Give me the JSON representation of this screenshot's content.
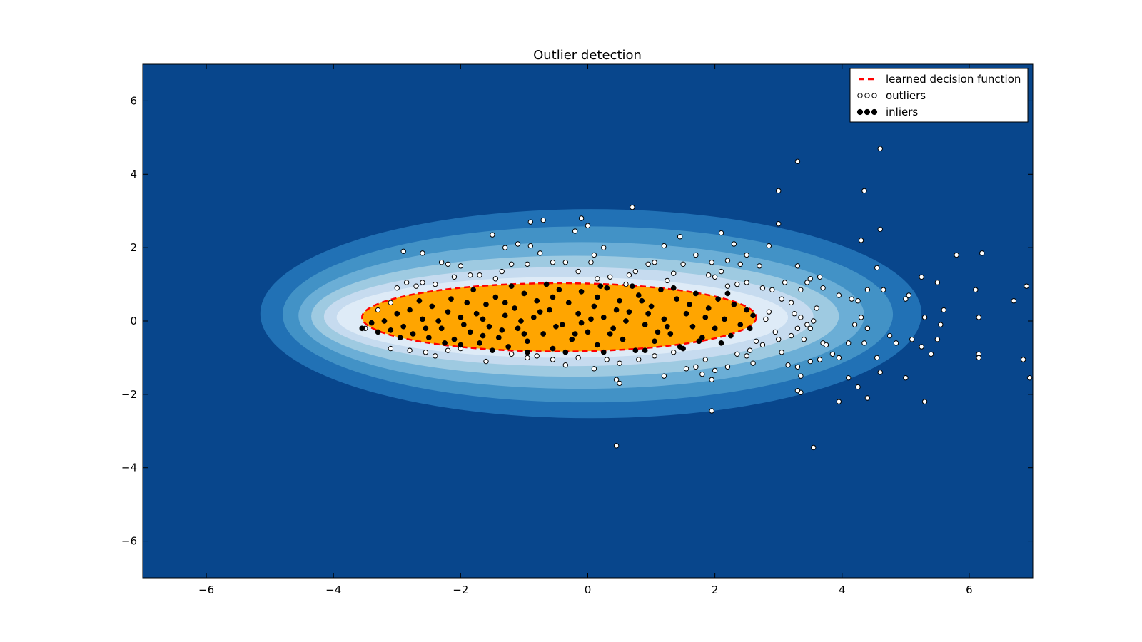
{
  "chart_data": {
    "type": "scatter",
    "title": "Outlier detection",
    "xlabel": "",
    "ylabel": "",
    "xlim": [
      -7,
      7
    ],
    "ylim": [
      -7,
      7
    ],
    "xticks": [
      -6,
      -4,
      -2,
      0,
      2,
      4,
      6
    ],
    "yticks": [
      -6,
      -4,
      -2,
      0,
      2,
      4,
      6
    ],
    "legend_position": "top-right",
    "colors": {
      "background": "#08468c",
      "levels": [
        "#2171b5",
        "#4292c6",
        "#6baed6",
        "#9ecae1",
        "#c6dbef",
        "#deebf7",
        "#eef4fb"
      ],
      "inlier_region": "#ffa500",
      "decision_line": "#ff0000",
      "inlier_marker": "#000000",
      "outlier_marker": "#ffffff"
    },
    "decision_region": {
      "center": [
        -0.45,
        0.1
      ],
      "semi_axes": [
        3.1,
        0.93
      ]
    },
    "contour_levels": [
      {
        "center": [
          0.05,
          0.2
        ],
        "semi_axes": [
          5.2,
          2.85
        ]
      },
      {
        "center": [
          0.0,
          0.18
        ],
        "semi_axes": [
          4.8,
          2.4
        ]
      },
      {
        "center": [
          -0.1,
          0.15
        ],
        "semi_axes": [
          4.45,
          2.0
        ]
      },
      {
        "center": [
          -0.2,
          0.13
        ],
        "semi_axes": [
          4.15,
          1.65
        ]
      },
      {
        "center": [
          -0.3,
          0.12
        ],
        "semi_axes": [
          3.85,
          1.35
        ]
      },
      {
        "center": [
          -0.4,
          0.1
        ],
        "semi_axes": [
          3.55,
          1.1
        ]
      }
    ],
    "outliers": [
      [
        -2.9,
        1.9
      ],
      [
        -2.6,
        1.85
      ],
      [
        -2.3,
        1.6
      ],
      [
        -2.2,
        1.55
      ],
      [
        -2.0,
        1.5
      ],
      [
        -1.5,
        2.35
      ],
      [
        -1.3,
        2.0
      ],
      [
        -1.1,
        2.1
      ],
      [
        -0.9,
        2.05
      ],
      [
        -0.9,
        2.7
      ],
      [
        -0.7,
        2.75
      ],
      [
        -0.1,
        2.8
      ],
      [
        0.0,
        2.6
      ],
      [
        -0.2,
        2.45
      ],
      [
        0.7,
        3.1
      ],
      [
        1.45,
        2.3
      ],
      [
        1.2,
        2.05
      ],
      [
        2.1,
        2.4
      ],
      [
        2.3,
        2.1
      ],
      [
        2.5,
        1.8
      ],
      [
        2.85,
        2.05
      ],
      [
        3.0,
        2.65
      ],
      [
        3.0,
        3.55
      ],
      [
        3.3,
        4.35
      ],
      [
        4.35,
        3.55
      ],
      [
        4.6,
        4.7
      ],
      [
        4.6,
        2.5
      ],
      [
        4.3,
        2.2
      ],
      [
        5.8,
        1.8
      ],
      [
        6.2,
        1.85
      ],
      [
        6.1,
        0.85
      ],
      [
        6.15,
        0.1
      ],
      [
        6.7,
        0.55
      ],
      [
        6.9,
        0.95
      ],
      [
        6.15,
        -0.9
      ],
      [
        6.15,
        -1.0
      ],
      [
        6.85,
        -1.05
      ],
      [
        6.95,
        -1.55
      ],
      [
        5.3,
        -2.2
      ],
      [
        4.4,
        -2.1
      ],
      [
        3.95,
        -2.2
      ],
      [
        3.55,
        -3.45
      ],
      [
        0.45,
        -3.4
      ],
      [
        1.95,
        -2.45
      ],
      [
        3.35,
        -1.95
      ],
      [
        3.3,
        -1.9
      ],
      [
        5.0,
        -1.55
      ],
      [
        4.6,
        -1.4
      ],
      [
        4.25,
        -1.8
      ],
      [
        4.1,
        -1.55
      ],
      [
        5.6,
        0.3
      ],
      [
        5.5,
        1.05
      ],
      [
        5.25,
        1.2
      ],
      [
        5.05,
        0.7
      ],
      [
        5.0,
        0.6
      ],
      [
        5.3,
        0.1
      ],
      [
        5.1,
        -0.5
      ],
      [
        5.25,
        -0.7
      ],
      [
        5.4,
        -0.9
      ],
      [
        5.5,
        -0.5
      ],
      [
        5.55,
        -0.1
      ],
      [
        4.75,
        -0.4
      ],
      [
        4.85,
        -0.6
      ],
      [
        4.55,
        -1.0
      ],
      [
        4.65,
        0.85
      ],
      [
        4.55,
        1.45
      ],
      [
        4.4,
        0.85
      ],
      [
        4.3,
        0.1
      ],
      [
        4.4,
        -0.2
      ],
      [
        4.35,
        -0.6
      ],
      [
        4.1,
        -0.6
      ],
      [
        4.2,
        -0.1
      ],
      [
        4.15,
        0.6
      ],
      [
        4.25,
        0.55
      ],
      [
        3.95,
        0.7
      ],
      [
        3.65,
        1.2
      ],
      [
        3.5,
        1.15
      ],
      [
        3.45,
        1.05
      ],
      [
        3.35,
        0.85
      ],
      [
        3.3,
        1.5
      ],
      [
        3.1,
        1.05
      ],
      [
        3.05,
        0.6
      ],
      [
        3.2,
        0.5
      ],
      [
        3.25,
        0.2
      ],
      [
        3.35,
        0.1
      ],
      [
        3.45,
        -0.1
      ],
      [
        3.55,
        0.0
      ],
      [
        3.6,
        0.35
      ],
      [
        3.7,
        -0.6
      ],
      [
        3.85,
        -0.9
      ],
      [
        3.95,
        -1.0
      ],
      [
        3.65,
        -1.05
      ],
      [
        3.5,
        -1.1
      ],
      [
        3.3,
        -1.25
      ],
      [
        3.35,
        -1.5
      ],
      [
        3.15,
        -1.2
      ],
      [
        3.05,
        -0.85
      ],
      [
        3.0,
        -0.5
      ],
      [
        3.2,
        -0.4
      ],
      [
        3.4,
        -0.5
      ],
      [
        3.5,
        -0.2
      ],
      [
        2.95,
        -0.3
      ],
      [
        2.8,
        0.05
      ],
      [
        2.85,
        0.25
      ],
      [
        2.9,
        0.85
      ],
      [
        2.75,
        0.9
      ],
      [
        2.5,
        1.05
      ],
      [
        2.35,
        1.0
      ],
      [
        2.2,
        0.95
      ],
      [
        2.1,
        1.35
      ],
      [
        2.2,
        1.65
      ],
      [
        2.4,
        1.55
      ],
      [
        2.7,
        1.5
      ],
      [
        2.0,
        1.2
      ],
      [
        1.9,
        1.25
      ],
      [
        1.95,
        1.6
      ],
      [
        1.7,
        1.8
      ],
      [
        1.5,
        1.55
      ],
      [
        1.35,
        1.3
      ],
      [
        1.25,
        1.1
      ],
      [
        1.05,
        1.6
      ],
      [
        0.95,
        1.55
      ],
      [
        0.75,
        1.35
      ],
      [
        0.65,
        1.25
      ],
      [
        0.6,
        1.0
      ],
      [
        0.35,
        1.2
      ],
      [
        0.15,
        1.15
      ],
      [
        0.05,
        1.6
      ],
      [
        0.1,
        1.8
      ],
      [
        0.25,
        2.0
      ],
      [
        -0.15,
        1.35
      ],
      [
        -0.35,
        1.6
      ],
      [
        -0.55,
        1.6
      ],
      [
        -0.75,
        1.85
      ],
      [
        -0.95,
        1.55
      ],
      [
        -1.2,
        1.55
      ],
      [
        -1.35,
        1.35
      ],
      [
        -1.45,
        1.15
      ],
      [
        -1.7,
        1.25
      ],
      [
        -1.85,
        1.25
      ],
      [
        -2.1,
        1.2
      ],
      [
        -2.4,
        1.0
      ],
      [
        -2.6,
        1.05
      ],
      [
        -2.7,
        0.95
      ],
      [
        -2.85,
        1.05
      ],
      [
        -3.0,
        0.9
      ],
      [
        -3.1,
        0.5
      ],
      [
        -3.3,
        0.3
      ],
      [
        -3.5,
        -0.2
      ],
      [
        -3.1,
        -0.75
      ],
      [
        -2.8,
        -0.8
      ],
      [
        -2.55,
        -0.85
      ],
      [
        -2.4,
        -0.95
      ],
      [
        -2.2,
        -0.8
      ],
      [
        -2.0,
        -0.75
      ],
      [
        -1.6,
        -1.1
      ],
      [
        -1.2,
        -0.9
      ],
      [
        -0.95,
        -1.0
      ],
      [
        -0.8,
        -0.95
      ],
      [
        -0.55,
        -1.05
      ],
      [
        -0.35,
        -1.2
      ],
      [
        -0.15,
        -1.0
      ],
      [
        0.1,
        -1.3
      ],
      [
        0.3,
        -1.05
      ],
      [
        0.5,
        -1.15
      ],
      [
        0.8,
        -1.05
      ],
      [
        1.05,
        -0.95
      ],
      [
        1.2,
        -1.5
      ],
      [
        1.35,
        -0.85
      ],
      [
        1.55,
        -1.3
      ],
      [
        1.7,
        -1.25
      ],
      [
        1.85,
        -1.05
      ],
      [
        2.0,
        -1.35
      ],
      [
        2.2,
        -1.25
      ],
      [
        2.35,
        -0.9
      ],
      [
        2.55,
        -0.8
      ],
      [
        2.6,
        -1.15
      ],
      [
        2.75,
        -0.65
      ],
      [
        0.45,
        -1.6
      ],
      [
        0.5,
        -1.7
      ],
      [
        1.8,
        -1.45
      ],
      [
        1.95,
        -1.6
      ],
      [
        2.5,
        -0.95
      ],
      [
        2.65,
        -0.55
      ],
      [
        3.75,
        -0.65
      ],
      [
        3.7,
        0.9
      ],
      [
        3.3,
        -0.2
      ]
    ],
    "inliers": [
      [
        -3.3,
        -0.3
      ],
      [
        -3.2,
        0.0
      ],
      [
        -3.1,
        -0.25
      ],
      [
        -3.0,
        0.2
      ],
      [
        -2.9,
        -0.15
      ],
      [
        -2.8,
        0.3
      ],
      [
        -2.75,
        -0.35
      ],
      [
        -2.6,
        0.05
      ],
      [
        -2.5,
        -0.45
      ],
      [
        -2.45,
        0.4
      ],
      [
        -2.3,
        -0.2
      ],
      [
        -2.2,
        0.25
      ],
      [
        -2.1,
        -0.5
      ],
      [
        -2.0,
        0.1
      ],
      [
        -1.9,
        0.5
      ],
      [
        -1.85,
        -0.3
      ],
      [
        -1.75,
        0.2
      ],
      [
        -1.7,
        -0.6
      ],
      [
        -1.6,
        0.45
      ],
      [
        -1.55,
        -0.15
      ],
      [
        -1.45,
        0.65
      ],
      [
        -1.4,
        -0.45
      ],
      [
        -1.3,
        0.15
      ],
      [
        -1.25,
        -0.7
      ],
      [
        -1.15,
        0.35
      ],
      [
        -1.1,
        -0.2
      ],
      [
        -1.0,
        0.75
      ],
      [
        -0.95,
        -0.55
      ],
      [
        -0.85,
        0.1
      ],
      [
        -0.8,
        0.55
      ],
      [
        -0.7,
        -0.35
      ],
      [
        -0.6,
        0.3
      ],
      [
        -0.55,
        -0.75
      ],
      [
        -0.45,
        0.85
      ],
      [
        -0.4,
        -0.1
      ],
      [
        -0.3,
        0.5
      ],
      [
        -0.25,
        -0.5
      ],
      [
        -0.15,
        0.2
      ],
      [
        -0.1,
        0.8
      ],
      [
        0.0,
        -0.3
      ],
      [
        0.1,
        0.4
      ],
      [
        0.15,
        -0.65
      ],
      [
        0.25,
        0.1
      ],
      [
        0.3,
        0.9
      ],
      [
        0.4,
        -0.2
      ],
      [
        0.5,
        0.55
      ],
      [
        0.55,
        -0.5
      ],
      [
        0.65,
        0.25
      ],
      [
        0.75,
        -0.8
      ],
      [
        0.8,
        0.7
      ],
      [
        0.9,
        -0.1
      ],
      [
        1.0,
        0.4
      ],
      [
        1.05,
        -0.55
      ],
      [
        1.15,
        0.85
      ],
      [
        1.2,
        0.05
      ],
      [
        1.3,
        -0.35
      ],
      [
        1.4,
        0.6
      ],
      [
        1.45,
        -0.7
      ],
      [
        1.55,
        0.2
      ],
      [
        1.65,
        -0.15
      ],
      [
        1.7,
        0.75
      ],
      [
        1.8,
        -0.45
      ],
      [
        1.9,
        0.35
      ],
      [
        2.0,
        -0.2
      ],
      [
        2.05,
        0.6
      ],
      [
        2.15,
        0.05
      ],
      [
        2.25,
        -0.4
      ],
      [
        2.3,
        0.45
      ],
      [
        2.4,
        -0.1
      ],
      [
        2.5,
        0.3
      ],
      [
        -2.35,
        0.0
      ],
      [
        -1.95,
        -0.1
      ],
      [
        -1.65,
        0.05
      ],
      [
        -1.35,
        -0.25
      ],
      [
        -1.05,
        0.0
      ],
      [
        -0.75,
        0.25
      ],
      [
        -0.5,
        -0.15
      ],
      [
        -0.2,
        -0.35
      ],
      [
        0.05,
        0.05
      ],
      [
        0.35,
        -0.35
      ],
      [
        0.6,
        0.0
      ],
      [
        0.95,
        0.2
      ],
      [
        1.25,
        -0.15
      ],
      [
        1.6,
        0.45
      ],
      [
        -3.4,
        -0.05
      ],
      [
        -2.95,
        -0.45
      ],
      [
        -2.65,
        0.55
      ],
      [
        -2.15,
        0.6
      ],
      [
        -1.8,
        0.85
      ],
      [
        -1.2,
        0.95
      ],
      [
        -0.65,
        1.0
      ],
      [
        0.2,
        0.95
      ],
      [
        0.7,
        0.95
      ],
      [
        1.35,
        0.9
      ],
      [
        2.2,
        0.75
      ],
      [
        -2.0,
        -0.65
      ],
      [
        -1.5,
        -0.8
      ],
      [
        -0.95,
        -0.85
      ],
      [
        -0.35,
        -0.85
      ],
      [
        0.25,
        -0.85
      ],
      [
        0.9,
        -0.8
      ],
      [
        1.5,
        -0.75
      ],
      [
        2.1,
        -0.6
      ],
      [
        2.55,
        -0.2
      ],
      [
        2.6,
        0.15
      ],
      [
        -1.65,
        -0.4
      ],
      [
        -1.0,
        -0.35
      ],
      [
        -0.1,
        -0.05
      ],
      [
        0.45,
        0.3
      ],
      [
        1.1,
        -0.3
      ],
      [
        1.85,
        0.1
      ],
      [
        -2.55,
        -0.2
      ],
      [
        -0.55,
        0.65
      ],
      [
        0.15,
        0.65
      ],
      [
        0.85,
        0.55
      ],
      [
        1.75,
        -0.55
      ],
      [
        -1.3,
        0.5
      ],
      [
        -2.25,
        -0.6
      ],
      [
        -3.55,
        -0.2
      ]
    ],
    "legend": [
      {
        "label": "learned decision function",
        "kind": "line"
      },
      {
        "label": "outliers",
        "kind": "outlier"
      },
      {
        "label": "inliers",
        "kind": "inlier"
      }
    ]
  }
}
